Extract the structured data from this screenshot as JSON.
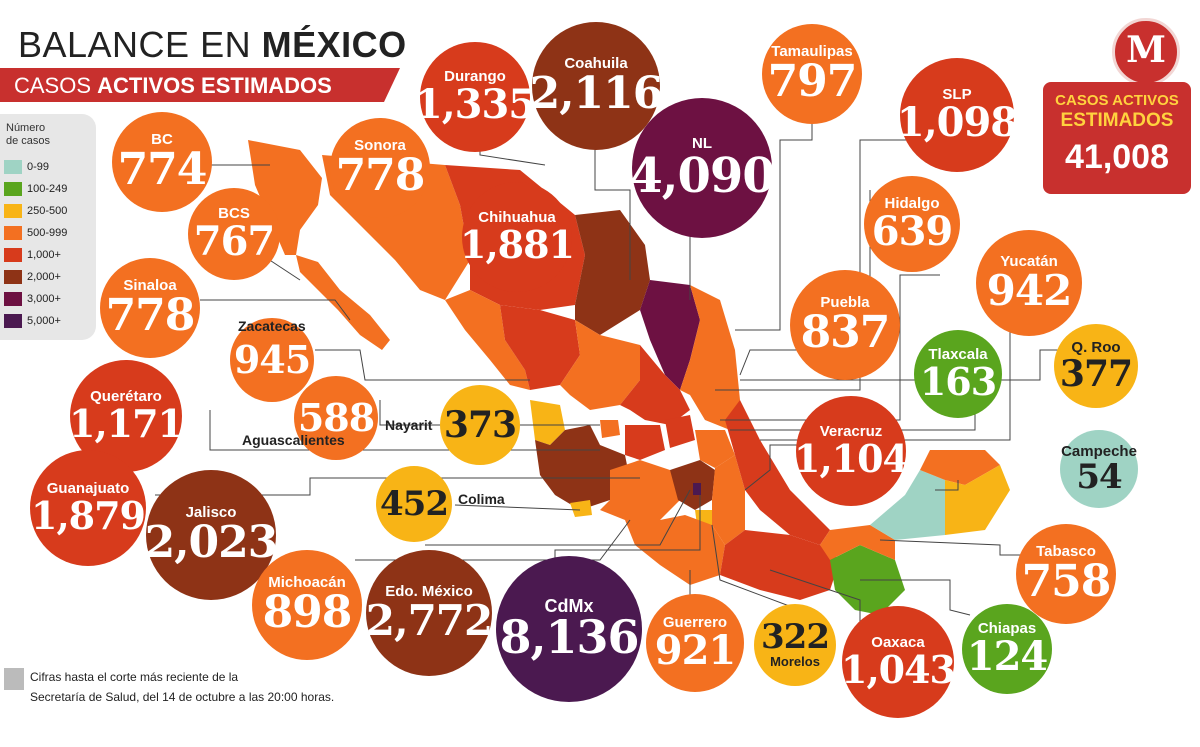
{
  "header": {
    "title_light": "BALANCE EN ",
    "title_bold": "MÉXICO",
    "subtitle_light": "CASOS ",
    "subtitle_bold": "ACTIVOS ESTIMADOS"
  },
  "legend": {
    "title_line1": "Número",
    "title_line2": "de casos",
    "items": [
      {
        "label": "0-99",
        "color": "#9fd3c4"
      },
      {
        "label": "100-249",
        "color": "#5aa51e"
      },
      {
        "label": "250-500",
        "color": "#f8b416"
      },
      {
        "label": "500-999",
        "color": "#f37021"
      },
      {
        "label": "1,000+",
        "color": "#d73b1c"
      },
      {
        "label": "2,000+",
        "color": "#8e3316"
      },
      {
        "label": "3,000+",
        "color": "#6d1142"
      },
      {
        "label": "5,000+",
        "color": "#4b1950"
      }
    ]
  },
  "total": {
    "label_line1": "CASOS ACTIVOS",
    "label_line2": "ESTIMADOS",
    "value": "41,008"
  },
  "logo": {
    "letter": "M",
    "color": "#c8302e"
  },
  "states": [
    {
      "name": "BC",
      "value": "774",
      "color": "#f37021"
    },
    {
      "name": "Sonora",
      "value": "778",
      "color": "#f37021"
    },
    {
      "name": "Durango",
      "value": "1,335",
      "color": "#d73b1c"
    },
    {
      "name": "Coahuila",
      "value": "2,116",
      "color": "#8e3316"
    },
    {
      "name": "NL",
      "value": "4,090",
      "color": "#6d1142"
    },
    {
      "name": "Tamaulipas",
      "value": "797",
      "color": "#f37021"
    },
    {
      "name": "SLP",
      "value": "1,098",
      "color": "#d73b1c"
    },
    {
      "name": "BCS",
      "value": "767",
      "color": "#f37021"
    },
    {
      "name": "Chihuahua",
      "value": "1,881",
      "color": "#d73b1c"
    },
    {
      "name": "Hidalgo",
      "value": "639",
      "color": "#f37021"
    },
    {
      "name": "Yucatán",
      "value": "942",
      "color": "#f37021"
    },
    {
      "name": "Sinaloa",
      "value": "778",
      "color": "#f37021"
    },
    {
      "name": "Zacatecas",
      "value": "945",
      "color": "#f37021"
    },
    {
      "name": "Puebla",
      "value": "837",
      "color": "#f37021"
    },
    {
      "name": "Querétaro",
      "value": "1,171",
      "color": "#d73b1c"
    },
    {
      "name": "Aguascalientes",
      "value": "588",
      "color": "#f37021"
    },
    {
      "name": "Nayarit",
      "value": "373",
      "color": "#f8b416"
    },
    {
      "name": "Tlaxcala",
      "value": "163",
      "color": "#5aa51e"
    },
    {
      "name": "Q. Roo",
      "value": "377",
      "color": "#f8b416"
    },
    {
      "name": "Veracruz",
      "value": "1,104",
      "color": "#d73b1c"
    },
    {
      "name": "Campeche",
      "value": "54",
      "color": "#9fd3c4"
    },
    {
      "name": "Guanajuato",
      "value": "1,879",
      "color": "#d73b1c"
    },
    {
      "name": "Jalisco",
      "value": "2,023",
      "color": "#8e3316"
    },
    {
      "name": "Colima",
      "value": "452",
      "color": "#f8b416"
    },
    {
      "name": "Tabasco",
      "value": "758",
      "color": "#f37021"
    },
    {
      "name": "Michoacán",
      "value": "898",
      "color": "#f37021"
    },
    {
      "name": "Edo. México",
      "value": "2,772",
      "color": "#8e3316"
    },
    {
      "name": "CdMx",
      "value": "8,136",
      "color": "#4b1950"
    },
    {
      "name": "Guerrero",
      "value": "921",
      "color": "#f37021"
    },
    {
      "name": "Morelos",
      "value": "322",
      "color": "#f8b416"
    },
    {
      "name": "Oaxaca",
      "value": "1,043",
      "color": "#d73b1c"
    },
    {
      "name": "Chiapas",
      "value": "124",
      "color": "#5aa51e"
    }
  ],
  "footnote": {
    "line1": "Cifras hasta el corte más reciente de la",
    "line2": "Secretaría de Salud, del 14 de octubre a las 20:00 horas."
  }
}
